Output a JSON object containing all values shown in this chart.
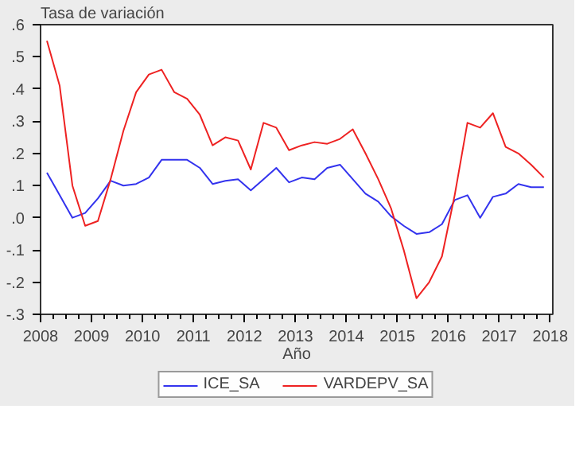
{
  "chart_data": {
    "type": "line",
    "ylabel": "Tasa de variación",
    "xlabel": "Año",
    "x": [
      2008.125,
      2008.375,
      2008.625,
      2008.875,
      2009.125,
      2009.375,
      2009.625,
      2009.875,
      2010.125,
      2010.375,
      2010.625,
      2010.875,
      2011.125,
      2011.375,
      2011.625,
      2011.875,
      2012.125,
      2012.375,
      2012.625,
      2012.875,
      2013.125,
      2013.375,
      2013.625,
      2013.875,
      2014.125,
      2014.375,
      2014.625,
      2014.875,
      2015.125,
      2015.375,
      2015.625,
      2015.875,
      2016.125,
      2016.375,
      2016.625,
      2016.875,
      2017.125,
      2017.375,
      2017.625,
      2017.875
    ],
    "series": [
      {
        "name": "ICE_SA",
        "color": "#3333ee",
        "values": [
          0.14,
          0.07,
          0.0,
          0.015,
          0.06,
          0.115,
          0.1,
          0.105,
          0.125,
          0.18,
          0.18,
          0.18,
          0.155,
          0.105,
          0.115,
          0.12,
          0.085,
          0.12,
          0.155,
          0.11,
          0.125,
          0.12,
          0.155,
          0.165,
          0.12,
          0.075,
          0.05,
          0.005,
          -0.025,
          -0.05,
          -0.045,
          -0.02,
          0.055,
          0.07,
          0.0,
          0.065,
          0.075,
          0.105,
          0.095,
          0.095
        ]
      },
      {
        "name": "VARDEPV_SA",
        "color": "#ee2222",
        "values": [
          0.55,
          0.41,
          0.1,
          -0.025,
          -0.01,
          0.12,
          0.27,
          0.39,
          0.445,
          0.46,
          0.39,
          0.37,
          0.32,
          0.225,
          0.25,
          0.24,
          0.15,
          0.295,
          0.28,
          0.21,
          0.225,
          0.235,
          0.23,
          0.245,
          0.275,
          0.2,
          0.12,
          0.03,
          -0.1,
          -0.25,
          -0.2,
          -0.12,
          0.07,
          0.295,
          0.28,
          0.325,
          0.22,
          0.2,
          0.165,
          0.125
        ]
      }
    ],
    "xlim": [
      2008,
      2018.05
    ],
    "xticks": [
      2008,
      2009,
      2010,
      2011,
      2012,
      2013,
      2014,
      2015,
      2016,
      2017,
      2018
    ],
    "ylim": [
      -0.3,
      0.6
    ],
    "yticks": [
      {
        "value": -0.3,
        "label": "-.3"
      },
      {
        "value": -0.2,
        "label": "-.2"
      },
      {
        "value": -0.1,
        "label": "-.1"
      },
      {
        "value": 0.0,
        "label": ".0"
      },
      {
        "value": 0.1,
        "label": ".1"
      },
      {
        "value": 0.2,
        "label": ".2"
      },
      {
        "value": 0.3,
        "label": ".3"
      },
      {
        "value": 0.4,
        "label": ".4"
      },
      {
        "value": 0.5,
        "label": ".5"
      },
      {
        "value": 0.6,
        "label": ".6"
      }
    ],
    "grid": false,
    "legend": "bottom",
    "line_style": "solid",
    "marker": "none"
  }
}
